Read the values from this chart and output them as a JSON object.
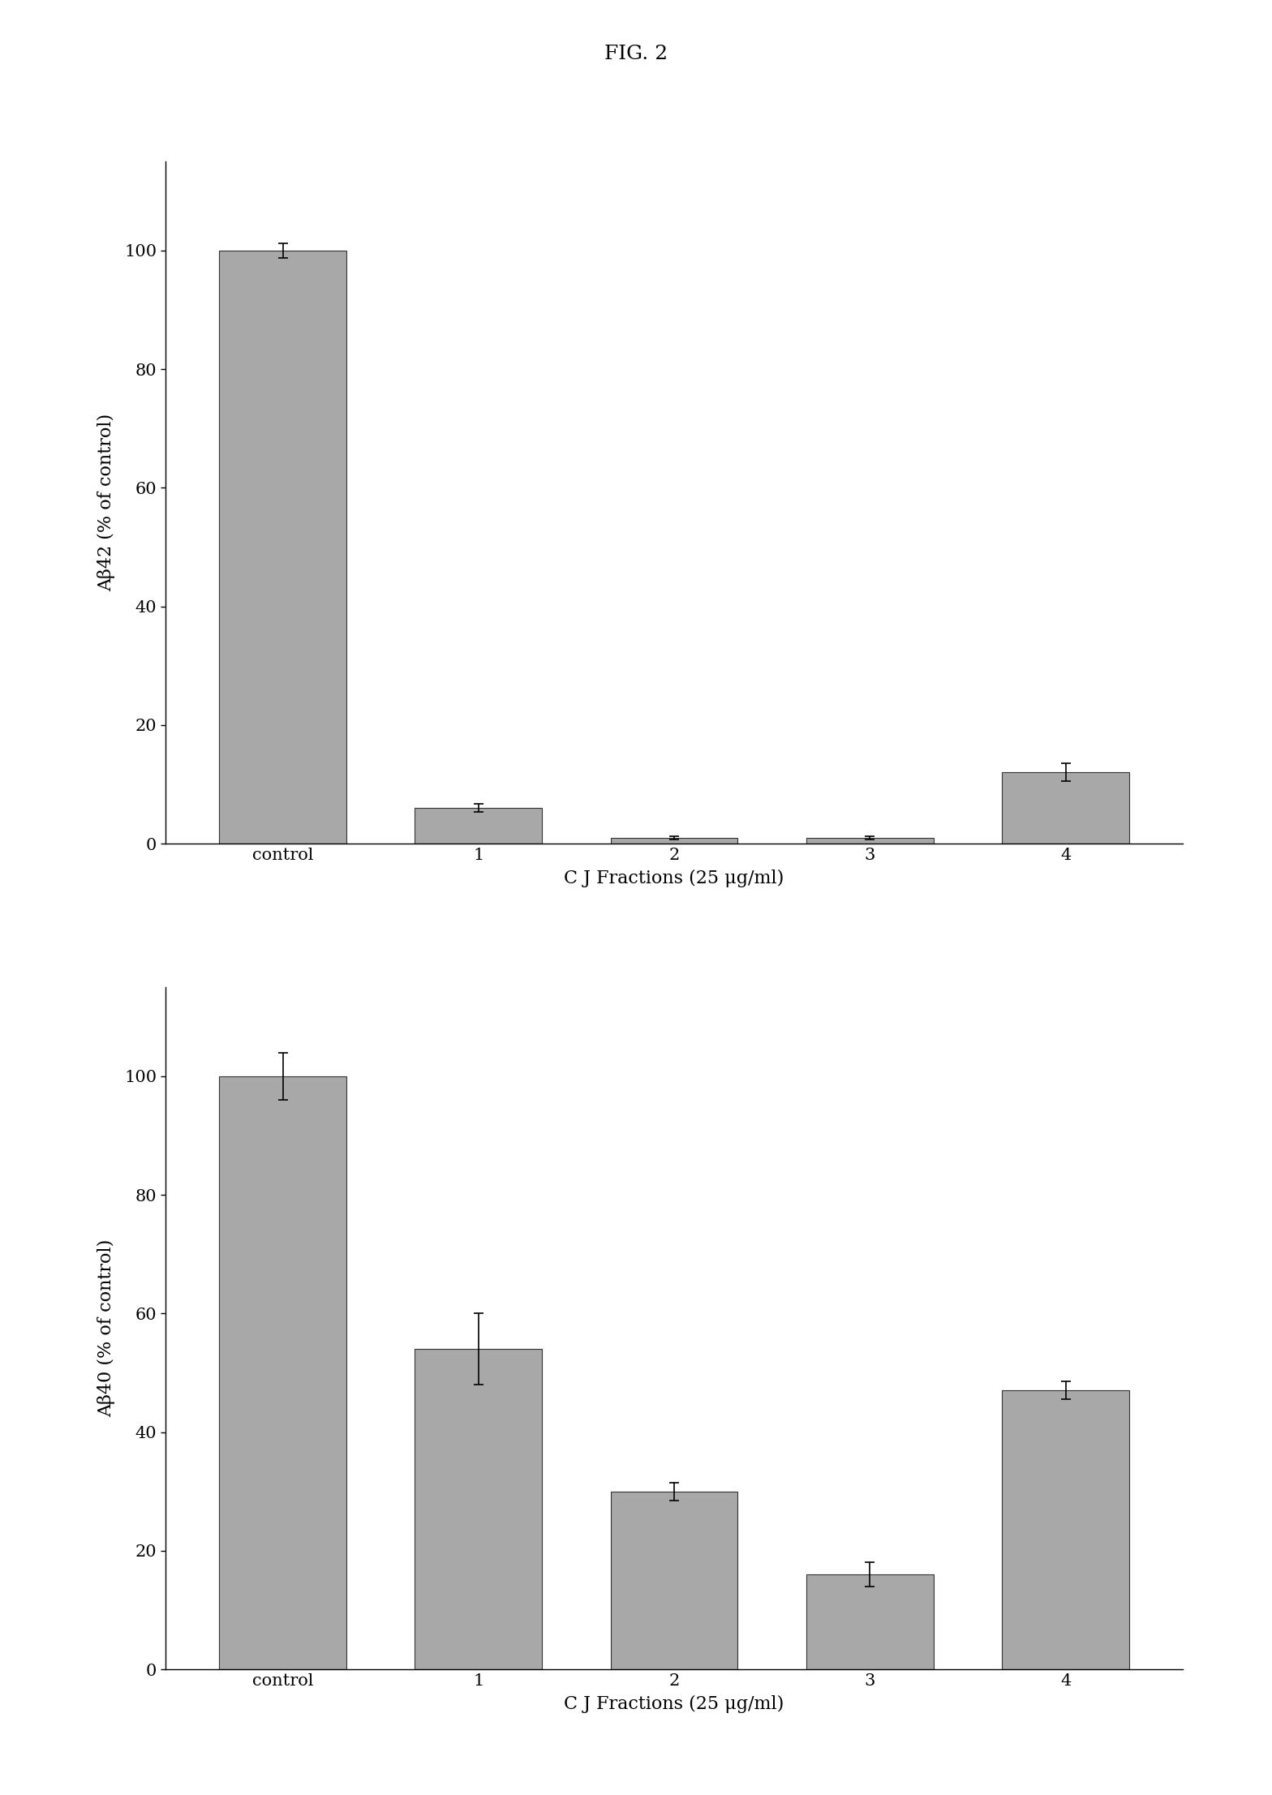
{
  "fig_title": "FIG. 2",
  "bar_color": "#a8a8a8",
  "bar_edge_color": "#333333",
  "background_color": "#ffffff",
  "plot1": {
    "categories": [
      "control",
      "1",
      "2",
      "3",
      "4"
    ],
    "values": [
      100,
      6,
      1,
      1,
      12
    ],
    "errors": [
      1.2,
      0.7,
      0.3,
      0.3,
      1.5
    ],
    "ylabel": "Aβ42 (% of control)",
    "xlabel": "C J Fractions (25 μg/ml)",
    "ylim": [
      0,
      115
    ],
    "yticks": [
      0,
      20,
      40,
      60,
      80,
      100
    ]
  },
  "plot2": {
    "categories": [
      "control",
      "1",
      "2",
      "3",
      "4"
    ],
    "values": [
      100,
      54,
      30,
      16,
      47
    ],
    "errors": [
      4,
      6,
      1.5,
      2,
      1.5
    ],
    "ylabel": "Aβ40 (% of control)",
    "xlabel": "C J Fractions (25 μg/ml)",
    "ylim": [
      0,
      115
    ],
    "yticks": [
      0,
      20,
      40,
      60,
      80,
      100
    ]
  }
}
